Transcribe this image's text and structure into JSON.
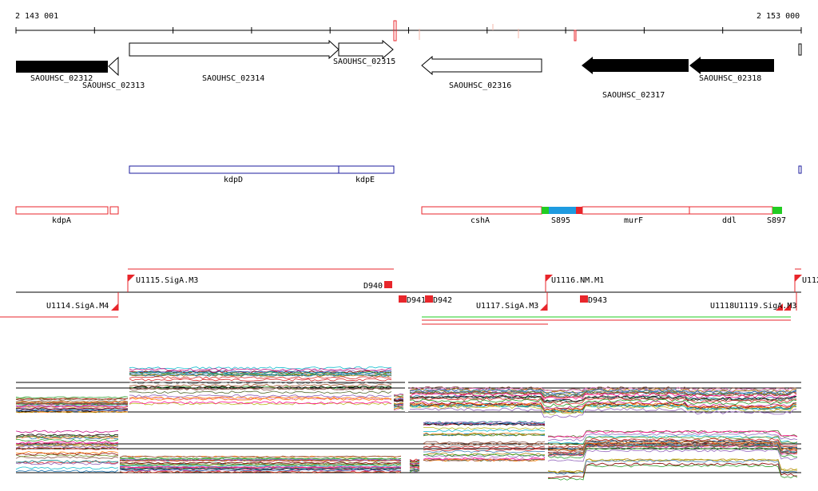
{
  "ruler": {
    "start_label": "2 143 001",
    "end_label": "2 153 000"
  },
  "genes": [
    {
      "name": "SAOUHSC_02312",
      "strand": "-",
      "style": "filled"
    },
    {
      "name": "SAOUHSC_02313",
      "strand": "-",
      "style": "outline"
    },
    {
      "name": "SAOUHSC_02314",
      "strand": "+",
      "style": "outline"
    },
    {
      "name": "SAOUHSC_02315",
      "strand": "+",
      "style": "outline"
    },
    {
      "name": "SAOUHSC_02316",
      "strand": "-",
      "style": "outline"
    },
    {
      "name": "SAOUHSC_02317",
      "strand": "-",
      "style": "filled"
    },
    {
      "name": "SAOUHSC_02318",
      "strand": "-",
      "style": "filled"
    }
  ],
  "operons_blue": [
    "kdpD",
    "kdpE"
  ],
  "operons_red": [
    "kdpA",
    "cshA",
    "S895",
    "murF",
    "ddl",
    "S897"
  ],
  "segment_colors": {
    "S895": "#1e9be0",
    "S897": "#22cc22"
  },
  "transcription_units": {
    "forward": [
      "U1115.SigA.M3",
      "D940",
      "U1116.NM.M1",
      "U112"
    ],
    "reverse": [
      "U1114.SigA.M4",
      "D941",
      "D942",
      "U1117.SigA.M3",
      "D943",
      "U1118U1119.SigA.M3"
    ]
  },
  "colors": {
    "feature_red": "#e8262b",
    "operon_blue": "#1b1b9e",
    "arrow_fill": "#000000"
  }
}
